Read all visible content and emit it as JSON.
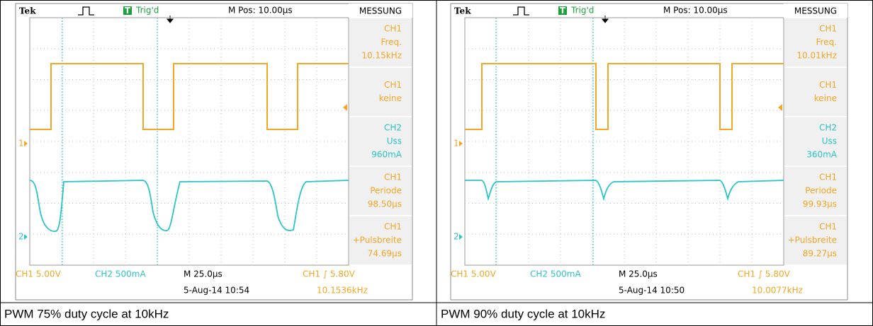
{
  "panels": [
    {
      "brand": "Tek",
      "trig_icon": "T",
      "trigger": "Trig'd",
      "mpos": "M Pos: 10.00µs",
      "menu_title": "MESSUNG",
      "menu": [
        {
          "lines": [
            "CH1",
            "Freq.",
            "10.15kHz"
          ]
        },
        {
          "lines": [
            "CH1",
            "keine"
          ]
        },
        {
          "lines": [
            "CH2",
            "Uss",
            "960mA"
          ]
        },
        {
          "lines": [
            "CH1",
            "Periode",
            "98.50µs"
          ]
        },
        {
          "lines": [
            "CH1",
            "+Pulsbreite",
            "74.69µs"
          ]
        }
      ],
      "ch1_marker": "1",
      "ch2_marker": "2",
      "bottom": {
        "ch1": "CH1  5.00V",
        "ch2": "CH2  500mA",
        "time": "M 25.0µs",
        "trig": "CH1  ∫  5.80V",
        "date": "5-Aug-14 10:54",
        "freq": "10.1536kHz"
      },
      "caption": "PWM 75% duty cycle at 10kHz"
    },
    {
      "brand": "Tek",
      "trig_icon": "T",
      "trigger": "Trig'd",
      "mpos": "M Pos: 10.00µs",
      "menu_title": "MESSUNG",
      "menu": [
        {
          "lines": [
            "CH1",
            "Freq.",
            "10.01kHz"
          ]
        },
        {
          "lines": [
            "CH1",
            "keine"
          ]
        },
        {
          "lines": [
            "CH2",
            "Uss",
            "360mA"
          ]
        },
        {
          "lines": [
            "CH1",
            "Periode",
            "99.93µs"
          ]
        },
        {
          "lines": [
            "CH1",
            "+Pulsbreite",
            "89.27µs"
          ]
        }
      ],
      "ch1_marker": "1",
      "ch2_marker": "2",
      "bottom": {
        "ch1": "CH1  5.00V",
        "ch2": "CH2  500mA",
        "time": "M 25.0µs",
        "trig": "CH1  ∫  5.80V",
        "date": "5-Aug-14 10:50",
        "freq": "10.0077kHz"
      },
      "caption": "PWM 90% duty cycle at 10kHz"
    }
  ]
}
